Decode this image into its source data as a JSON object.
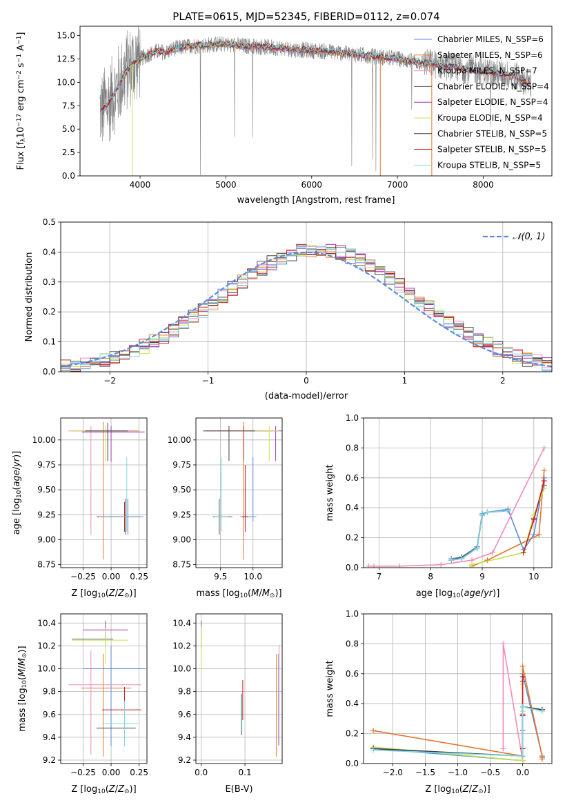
{
  "figure_title": "PLATE=0615, MJD=52345, FIBERID=0112, z=0.074",
  "colors": {
    "chabrier_miles": "#5b8bd8",
    "salpeter_miles": "#e3762a",
    "kroupa_miles": "#f28ab8",
    "chabrier_elodie": "#5a5a5a",
    "salpeter_elodie": "#9b39b6",
    "kroupa_elodie": "#c9e24b",
    "chabrier_stelib": "#404040",
    "salpeter_stelib": "#c2201c",
    "kroupa_stelib": "#7dd8e6",
    "data": "#808080"
  },
  "chart_data": [
    {
      "id": "spectrum",
      "type": "line",
      "title": "PLATE=0615, MJD=52345, FIBERID=0112, z=0.074",
      "xlabel": "wavelength [Angstrom, rest frame]",
      "ylabel": "Flux [f_λ 10^-17 erg cm^-2 s^-1 A^-1]",
      "xlim": [
        3300,
        8800
      ],
      "ylim": [
        0,
        16
      ],
      "xticks": [
        "4000",
        "5000",
        "6000",
        "7000",
        "8000"
      ],
      "yticks": [
        "0.0",
        "2.5",
        "5.0",
        "7.5",
        "10.0",
        "12.5",
        "15.0"
      ],
      "grid": false,
      "legend_position": "top-right",
      "legend": [
        "Chabrier MILES, N_SSP=6",
        "Salpeter MILES, N_SSP=6",
        "Kroupa MILES, N_SSP=7",
        "Chabrier ELODIE, N_SSP=4",
        "Salpeter ELODIE, N_SSP=4",
        "Kroupa ELODIE, N_SSP=4",
        "Chabrier STELIB, N_SSP=5",
        "Salpeter STELIB, N_SSP=5",
        "Kroupa STELIB, N_SSP=5"
      ],
      "model_continuum": {
        "x": [
          3530,
          3600,
          3700,
          3800,
          3900,
          3950,
          4000,
          4100,
          4200,
          4300,
          4400,
          4600,
          4800,
          5000,
          5200,
          5400,
          5600,
          5800,
          6000,
          6200,
          6400,
          6600,
          6800,
          7000,
          7200,
          7400,
          7600,
          7800,
          8000,
          8200,
          8400,
          8550
        ],
        "y": [
          7.0,
          7.4,
          8.8,
          10.6,
          11.9,
          12.2,
          12.5,
          13.0,
          13.3,
          13.2,
          13.6,
          13.9,
          14.0,
          14.1,
          13.9,
          13.8,
          13.7,
          13.5,
          13.4,
          13.3,
          13.1,
          12.9,
          12.7,
          12.5,
          12.2,
          12.0,
          11.7,
          11.4,
          11.2,
          10.9,
          10.6,
          9.8
        ]
      }
    },
    {
      "id": "residuals",
      "type": "line",
      "xlabel": "(data-model)/error",
      "ylabel": "Normed distribution",
      "xlim": [
        -2.5,
        2.5
      ],
      "ylim": [
        0,
        0.5
      ],
      "xticks": [
        "−2",
        "−1",
        "0",
        "1",
        "2"
      ],
      "yticks": [
        "0.0",
        "0.1",
        "0.2",
        "0.3",
        "0.4",
        "0.5"
      ],
      "grid": true,
      "legend_position": "top-right",
      "legend": [
        "𝒩(0, 1)"
      ],
      "reference_curve": {
        "name": "𝒩(0, 1)",
        "mean": 0,
        "sigma": 1
      }
    },
    {
      "id": "age_vs_Z",
      "type": "scatter",
      "xlabel": "Z [log10(Z/Z⊙)]",
      "ylabel": "age [log10(age/yr)]",
      "xlim": [
        -0.45,
        0.32
      ],
      "ylim": [
        8.72,
        10.22
      ],
      "xticks": [
        "−0.25",
        "0.00",
        "0.25"
      ],
      "yticks": [
        "8.75",
        "9.00",
        "9.25",
        "9.50",
        "9.75",
        "10.00"
      ],
      "grid": true,
      "points": [
        {
          "model": "Chabrier MILES",
          "x": 0.15,
          "y": 9.23,
          "xerr": [
            0.25,
            0.14
          ],
          "yerr": [
            0.18,
            0.18
          ]
        },
        {
          "model": "Salpeter MILES",
          "x": -0.07,
          "y": 10.09,
          "xerr": [
            0.28,
            0.32
          ],
          "yerr": [
            1.29,
            0.09
          ]
        },
        {
          "model": "Kroupa MILES",
          "x": -0.18,
          "y": 10.09,
          "xerr": [
            0.2,
            0.36
          ],
          "yerr": [
            1.04,
            0.05
          ]
        },
        {
          "model": "Chabrier ELODIE",
          "x": 0.13,
          "y": 9.23,
          "xerr": [
            0.25,
            0.14
          ],
          "yerr": [
            0.18,
            0.18
          ]
        },
        {
          "model": "Salpeter ELODIE",
          "x": 0.0,
          "y": 10.08,
          "xerr": [
            0.26,
            0.3
          ],
          "yerr": [
            0.3,
            0.06
          ]
        },
        {
          "model": "Kroupa ELODIE",
          "x": -0.05,
          "y": 10.09,
          "xerr": [
            0.3,
            0.2
          ],
          "yerr": [
            0.3,
            0.05
          ]
        },
        {
          "model": "Chabrier STELIB",
          "x": -0.03,
          "y": 10.09,
          "xerr": [
            0.2,
            0.18
          ],
          "yerr": [
            0.3,
            0.08
          ]
        },
        {
          "model": "Salpeter STELIB",
          "x": 0.12,
          "y": 9.23,
          "xerr": [
            0.25,
            0.14
          ],
          "yerr": [
            0.15,
            0.15
          ]
        },
        {
          "model": "Kroupa STELIB",
          "x": 0.14,
          "y": 9.23,
          "xerr": [
            0.25,
            0.14
          ],
          "yerr": [
            0.15,
            0.6
          ]
        }
      ]
    },
    {
      "id": "age_vs_mass",
      "type": "scatter",
      "xlabel": "mass [log10(M/M⊙)]",
      "ylabel": "",
      "xlim": [
        9.12,
        10.45
      ],
      "ylim": [
        8.72,
        10.22
      ],
      "xticks": [
        "9.5",
        "10.0"
      ],
      "yticks": [
        "8.75",
        "9.00",
        "9.25",
        "9.50",
        "9.75",
        "10.00"
      ],
      "grid": true,
      "points": [
        {
          "model": "Chabrier MILES",
          "x": 10.0,
          "y": 9.23,
          "xerr": [
            0.2,
            0.05
          ],
          "yerr": [
            0.05,
            0.6
          ]
        },
        {
          "model": "Salpeter MILES",
          "x": 9.85,
          "y": 10.09,
          "xerr": [
            0.6,
            0.45
          ],
          "yerr": [
            1.29,
            0.09
          ]
        },
        {
          "model": "Kroupa MILES",
          "x": 9.86,
          "y": 10.09,
          "xerr": [
            0.6,
            0.45
          ],
          "yerr": [
            0.3,
            0.05
          ]
        },
        {
          "model": "Chabrier ELODIE",
          "x": 9.48,
          "y": 9.23,
          "xerr": [
            0.1,
            0.2
          ],
          "yerr": [
            0.18,
            0.18
          ]
        },
        {
          "model": "Salpeter ELODIE",
          "x": 10.35,
          "y": 10.09,
          "xerr": [
            0.5,
            0.1
          ],
          "yerr": [
            0.3,
            0.05
          ]
        },
        {
          "model": "Kroupa ELODIE",
          "x": 10.25,
          "y": 10.09,
          "xerr": [
            0.5,
            0.15
          ],
          "yerr": [
            0.3,
            0.05
          ]
        },
        {
          "model": "Chabrier STELIB",
          "x": 9.63,
          "y": 10.09,
          "xerr": [
            0.4,
            0.4
          ],
          "yerr": [
            0.3,
            0.05
          ]
        },
        {
          "model": "Salpeter STELIB",
          "x": 9.88,
          "y": 9.23,
          "xerr": [
            0.05,
            0.05
          ],
          "yerr": [
            0.15,
            0.52
          ]
        },
        {
          "model": "Kroupa STELIB",
          "x": 9.51,
          "y": 9.23,
          "xerr": [
            0.1,
            0.1
          ],
          "yerr": [
            0.15,
            0.6
          ]
        }
      ]
    },
    {
      "id": "mass_weight_vs_age",
      "type": "line",
      "xlabel": "age [log10(age/yr)]",
      "ylabel": "mass weight",
      "xlim": [
        6.7,
        10.35
      ],
      "ylim": [
        0,
        1.0
      ],
      "xticks": [
        "7",
        "8",
        "9",
        "10"
      ],
      "yticks": [
        "0.0",
        "0.2",
        "0.4",
        "0.6",
        "0.8",
        "1.0"
      ],
      "grid": true,
      "series": [
        {
          "model": "Chabrier MILES",
          "x": [
            8.4,
            8.6,
            8.9,
            9.0,
            9.1,
            9.5,
            9.8,
            10.0,
            10.2
          ],
          "y": [
            0.06,
            0.07,
            0.14,
            0.36,
            0.37,
            0.39,
            0.12,
            0.22,
            0.6
          ]
        },
        {
          "model": "Salpeter MILES",
          "x": [
            8.8,
            9.1,
            10.1,
            10.2
          ],
          "y": [
            0.01,
            0.05,
            0.22,
            0.65
          ]
        },
        {
          "model": "Kroupa MILES",
          "x": [
            6.8,
            6.9,
            7.4,
            8.2,
            8.8,
            9.2,
            10.2
          ],
          "y": [
            0.01,
            0.01,
            0.01,
            0.02,
            0.05,
            0.1,
            0.8
          ]
        },
        {
          "model": "Chabrier ELODIE",
          "x": [
            8.4,
            8.6,
            8.9,
            9.0,
            9.1,
            9.5
          ],
          "y": [
            0.05,
            0.07,
            0.13,
            0.35,
            0.37,
            0.38
          ]
        },
        {
          "model": "Salpeter ELODIE",
          "x": [
            9.8,
            10.0,
            10.2
          ],
          "y": [
            0.1,
            0.33,
            0.55
          ]
        },
        {
          "model": "Kroupa ELODIE",
          "x": [
            8.8,
            9.8,
            10.0,
            10.2
          ],
          "y": [
            0.02,
            0.1,
            0.35,
            0.53
          ]
        },
        {
          "model": "Chabrier STELIB",
          "x": [
            8.4,
            8.6,
            8.9,
            9.0,
            9.1,
            9.5
          ],
          "y": [
            0.05,
            0.06,
            0.13,
            0.35,
            0.37,
            0.38
          ]
        },
        {
          "model": "Salpeter STELIB",
          "x": [
            9.8,
            10.0,
            10.2
          ],
          "y": [
            0.1,
            0.32,
            0.58
          ]
        },
        {
          "model": "Kroupa STELIB",
          "x": [
            8.4,
            8.6,
            8.9,
            9.0,
            9.1,
            9.5
          ],
          "y": [
            0.05,
            0.06,
            0.13,
            0.35,
            0.37,
            0.38
          ]
        }
      ]
    },
    {
      "id": "mass_vs_Z",
      "type": "scatter",
      "xlabel": "Z [log10(Z/Z⊙)]",
      "ylabel": "mass [log10(M/M⊙)]",
      "xlim": [
        -0.45,
        0.32
      ],
      "ylim": [
        9.17,
        10.48
      ],
      "xticks": [
        "−0.25",
        "0.00",
        "0.25"
      ],
      "yticks": [
        "9.2",
        "9.4",
        "9.6",
        "9.8",
        "10.0",
        "10.2",
        "10.4"
      ],
      "grid": true,
      "points": [
        {
          "model": "Chabrier MILES",
          "x": 0.0,
          "y": 10.0,
          "xerr": [
            0.25,
            0.3
          ],
          "yerr": [
            0.68,
            0.2
          ]
        },
        {
          "model": "Salpeter MILES",
          "x": -0.07,
          "y": 9.83,
          "xerr": [
            0.2,
            0.25
          ],
          "yerr": [
            0.6,
            0.3
          ]
        },
        {
          "model": "Kroupa MILES",
          "x": -0.18,
          "y": 9.86,
          "xerr": [
            0.2,
            0.45
          ],
          "yerr": [
            0.61,
            0.3
          ]
        },
        {
          "model": "Chabrier ELODIE",
          "x": -0.05,
          "y": 10.26,
          "xerr": [
            0.3,
            0.07
          ],
          "yerr": [
            0.07,
            0.07
          ]
        },
        {
          "model": "Salpeter ELODIE",
          "x": -0.05,
          "y": 10.34,
          "xerr": [
            0.2,
            0.2
          ],
          "yerr": [
            0.08,
            0.08
          ]
        },
        {
          "model": "Kroupa ELODIE",
          "x": -0.05,
          "y": 10.25,
          "xerr": [
            0.3,
            0.2
          ],
          "yerr": [
            0.2,
            0.1
          ]
        },
        {
          "model": "Chabrier STELIB",
          "x": 0.12,
          "y": 9.48,
          "xerr": [
            0.25,
            0.1
          ],
          "yerr": [
            0.1,
            0.1
          ]
        },
        {
          "model": "Salpeter STELIB",
          "x": 0.12,
          "y": 9.64,
          "xerr": [
            0.2,
            0.15
          ],
          "yerr": [
            0.2,
            0.2
          ]
        },
        {
          "model": "Kroupa STELIB",
          "x": 0.12,
          "y": 9.52,
          "xerr": [
            0.2,
            0.12
          ],
          "yerr": [
            0.2,
            0.2
          ]
        }
      ]
    },
    {
      "id": "mass_vs_ebv",
      "type": "scatter",
      "xlabel": "E(B-V)",
      "ylabel": "",
      "xlim": [
        -0.012,
        0.185
      ],
      "ylim": [
        9.17,
        10.48
      ],
      "xticks": [
        "0.0",
        "0.1"
      ],
      "yticks": [
        "9.2",
        "9.4",
        "9.6",
        "9.8",
        "10.0",
        "10.2",
        "10.4"
      ],
      "grid": true,
      "points": [
        {
          "model": "Chabrier MILES",
          "x": 0.177,
          "y": 9.83,
          "yerr": [
            0.5,
            0.3
          ]
        },
        {
          "model": "Salpeter MILES",
          "x": 0.172,
          "y": 9.83,
          "yerr": [
            0.6,
            0.3
          ]
        },
        {
          "model": "Kroupa MILES",
          "x": 0.178,
          "y": 9.83,
          "yerr": [
            0.5,
            0.38
          ]
        },
        {
          "model": "Chabrier ELODIE",
          "x": 0.0,
          "y": 10.26,
          "yerr": [
            0.08,
            0.08
          ]
        },
        {
          "model": "Salpeter ELODIE",
          "x": 0.0,
          "y": 10.38,
          "yerr": [
            0.04,
            0.04
          ]
        },
        {
          "model": "Kroupa ELODIE",
          "x": 0.0,
          "y": 10.17,
          "yerr": [
            0.17,
            0.2
          ]
        },
        {
          "model": "Chabrier STELIB",
          "x": 0.092,
          "y": 9.6,
          "yerr": [
            0.18,
            0.18
          ]
        },
        {
          "model": "Salpeter STELIB",
          "x": 0.095,
          "y": 9.73,
          "yerr": [
            0.18,
            0.17
          ]
        },
        {
          "model": "Kroupa STELIB",
          "x": 0.093,
          "y": 9.6,
          "yerr": [
            0.15,
            0.15
          ]
        }
      ]
    },
    {
      "id": "mass_weight_vs_Z",
      "type": "line",
      "xlabel": "Z [log10(Z/Z⊙)]",
      "ylabel": "mass weight",
      "xlim": [
        -2.45,
        0.45
      ],
      "ylim": [
        0,
        1.0
      ],
      "xticks": [
        "−2.0",
        "−1.5",
        "−1.0",
        "−0.5",
        "0.0"
      ],
      "yticks": [
        "0.0",
        "0.2",
        "0.4",
        "0.6",
        "0.8",
        "1.0"
      ],
      "grid": true,
      "series": [
        {
          "model": "Chabrier MILES",
          "x": [
            -2.3,
            0.0,
            0.0,
            0.0,
            0.3,
            0.3
          ],
          "y": [
            0.1,
            0.02,
            0.22,
            0.6,
            0.05,
            0.04
          ]
        },
        {
          "model": "Salpeter MILES",
          "x": [
            -2.3,
            0.0,
            0.0,
            0.3,
            0.3
          ],
          "y": [
            0.22,
            0.05,
            0.65,
            0.05,
            0.03
          ]
        },
        {
          "model": "Kroupa MILES",
          "x": [
            -0.3,
            -0.3,
            0.0,
            0.0
          ],
          "y": [
            0.1,
            0.8,
            0.02,
            0.02
          ]
        },
        {
          "model": "Chabrier ELODIE",
          "x": [
            0.0,
            0.0,
            0.3
          ],
          "y": [
            0.05,
            0.38,
            0.36
          ]
        },
        {
          "model": "Salpeter ELODIE",
          "x": [
            0.0,
            0.0,
            0.0
          ],
          "y": [
            0.1,
            0.33,
            0.55
          ]
        },
        {
          "model": "Kroupa ELODIE",
          "x": [
            -2.3,
            0.0,
            0.0,
            0.0
          ],
          "y": [
            0.11,
            0.02,
            0.35,
            0.53
          ]
        },
        {
          "model": "Chabrier STELIB",
          "x": [
            -2.3,
            0.0,
            0.0,
            0.3
          ],
          "y": [
            0.1,
            0.05,
            0.38,
            0.36
          ]
        },
        {
          "model": "Salpeter STELIB",
          "x": [
            0.0,
            0.0,
            0.0
          ],
          "y": [
            0.1,
            0.32,
            0.58
          ]
        },
        {
          "model": "Kroupa STELIB",
          "x": [
            -2.3,
            0.0,
            0.0,
            0.3
          ],
          "y": [
            0.09,
            0.05,
            0.38,
            0.35
          ]
        }
      ]
    }
  ]
}
